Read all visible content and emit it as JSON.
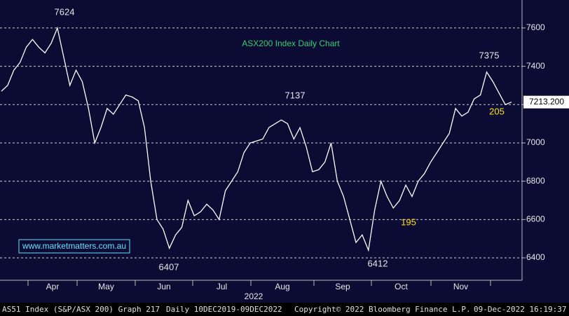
{
  "chart_data": {
    "type": "line",
    "title": "ASX200 Index Daily Chart",
    "watermark": "www.marketmatters.com.au",
    "color": "#ffffff",
    "values": [
      7270,
      7300,
      7380,
      7420,
      7500,
      7540,
      7500,
      7470,
      7520,
      7600,
      7450,
      7300,
      7380,
      7320,
      7180,
      7000,
      7080,
      7180,
      7150,
      7200,
      7250,
      7240,
      7220,
      7080,
      6800,
      6600,
      6550,
      6450,
      6520,
      6560,
      6700,
      6620,
      6640,
      6680,
      6650,
      6600,
      6750,
      6800,
      6850,
      6950,
      7000,
      7010,
      7020,
      7080,
      7100,
      7120,
      7100,
      7020,
      7080,
      6980,
      6850,
      6860,
      6900,
      7000,
      6800,
      6720,
      6600,
      6480,
      6520,
      6440,
      6650,
      6800,
      6720,
      6660,
      6700,
      6780,
      6720,
      6800,
      6840,
      6900,
      6950,
      7000,
      7050,
      7180,
      7140,
      7160,
      7230,
      7250,
      7370,
      7320,
      7260,
      7200,
      7213.2
    ],
    "ylim": [
      6283,
      7746
    ],
    "yticks": [
      6400,
      6600,
      6800,
      7000,
      7200,
      7400,
      7600
    ],
    "grid": true,
    "months": [
      "Apr",
      "May",
      "Jun",
      "Jul",
      "Aug",
      "Sep",
      "Oct",
      "Nov"
    ],
    "year": "2022",
    "price_tag": "7213.200",
    "annotations": [
      "7624",
      "7137",
      "7375",
      "6407",
      "6412",
      "205",
      "195"
    ],
    "footer": [
      "AS51 Index (S&P/ASX 200) Graph 217",
      "Daily 10DEC2019-09DEC2022",
      "Copyright© 2022 Bloomberg Finance L.P.",
      "09-Dec-2022 16:19:37"
    ]
  }
}
